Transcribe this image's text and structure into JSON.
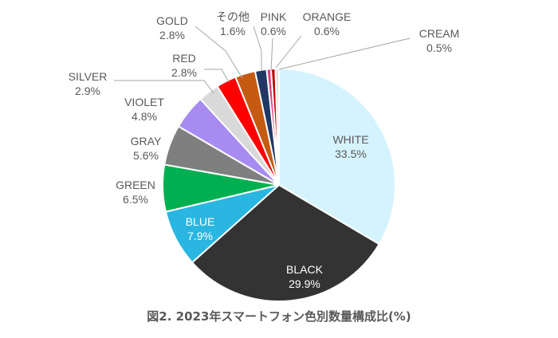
{
  "chart_data": {
    "type": "pie",
    "title": "図2. 2023年スマートフォン色別数量構成比(%)",
    "slices": [
      {
        "label": "WHITE",
        "value": 33.5,
        "display": "33.5%",
        "color": "#d5f3fd"
      },
      {
        "label": "BLACK",
        "value": 29.9,
        "display": "29.9%",
        "color": "#333333"
      },
      {
        "label": "BLUE",
        "value": 7.9,
        "display": "7.9%",
        "color": "#29b6e0"
      },
      {
        "label": "GREEN",
        "value": 6.5,
        "display": "6.5%",
        "color": "#00b050"
      },
      {
        "label": "GRAY",
        "value": 5.6,
        "display": "5.6%",
        "color": "#7f7f7f"
      },
      {
        "label": "VIOLET",
        "value": 4.8,
        "display": "4.8%",
        "color": "#a78bf0"
      },
      {
        "label": "SILVER",
        "value": 2.9,
        "display": "2.9%",
        "color": "#d9d9d9"
      },
      {
        "label": "RED",
        "value": 2.8,
        "display": "2.8%",
        "color": "#ff0000"
      },
      {
        "label": "GOLD",
        "value": 2.8,
        "display": "2.8%",
        "color": "#c55a11"
      },
      {
        "label": "その他",
        "value": 1.6,
        "display": "1.6%",
        "color": "#203864"
      },
      {
        "label": "PINK",
        "value": 0.6,
        "display": "0.6%",
        "color": "#e0457b"
      },
      {
        "label": "ORANGE",
        "value": 0.6,
        "display": "0.6%",
        "color": "#c00000"
      },
      {
        "label": "CREAM",
        "value": 0.5,
        "display": "0.5%",
        "color": "#f2dcdb"
      }
    ],
    "start": "12 o'clock",
    "direction": "clockwise",
    "legend": "none"
  }
}
